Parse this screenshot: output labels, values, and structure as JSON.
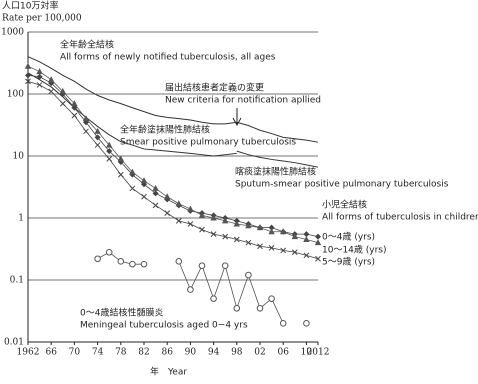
{
  "chart_data": {
    "type": "line",
    "log_y": true,
    "grid": true,
    "y_label": "人口10万対率",
    "y_label_en": "Rate per 100,000",
    "x_label": "年　Year",
    "x": [
      1962,
      1964,
      1966,
      1968,
      1970,
      1972,
      1974,
      1976,
      1978,
      1980,
      1982,
      1984,
      1986,
      1988,
      1990,
      1992,
      1994,
      1996,
      1998,
      2000,
      2002,
      2004,
      2006,
      2008,
      2010,
      2012
    ],
    "xlim": [
      1962,
      2012
    ],
    "xticks": [
      1962,
      {
        "value": 1966,
        "label": "66"
      },
      {
        "value": 1970,
        "label": "70"
      },
      {
        "value": 1974,
        "label": "74"
      },
      {
        "value": 1978,
        "label": "78"
      },
      {
        "value": 1982,
        "label": "82"
      },
      {
        "value": 1986,
        "label": "86"
      },
      {
        "value": 1990,
        "label": "90"
      },
      {
        "value": 1994,
        "label": "94"
      },
      {
        "value": 1998,
        "label": "98"
      },
      {
        "value": 2002,
        "label": "02"
      },
      {
        "value": 2006,
        "label": "06"
      },
      {
        "value": 2010,
        "label": "10"
      },
      2012
    ],
    "ylim": [
      0.01,
      1000
    ],
    "yticks": [
      1000,
      100,
      10,
      1,
      0.1,
      0.01
    ],
    "series": [
      {
        "name": "全年齢全結核",
        "color": "#333",
        "marker": "none",
        "values": [
          400,
          330,
          260,
          200,
          160,
          120,
          95,
          80,
          70,
          60,
          52,
          45,
          42,
          40,
          38,
          35,
          33,
          33,
          35,
          31,
          26,
          23,
          20,
          19,
          18,
          16.7
        ]
      },
      {
        "name": "全年齢塗抹陽性肺結核",
        "color": "#333",
        "marker": "none",
        "values": [
          220,
          170,
          130,
          90,
          60,
          42,
          30,
          22,
          17,
          15,
          13,
          12.5,
          12,
          11.5,
          11,
          10.5,
          10,
          10.5,
          11,
          null,
          null,
          null,
          null,
          null,
          null,
          null
        ]
      },
      {
        "name": "喀痰塗抹陽性肺結核",
        "color": "#333",
        "marker": "none",
        "values": [
          null,
          null,
          null,
          null,
          null,
          null,
          null,
          null,
          null,
          null,
          null,
          null,
          null,
          null,
          null,
          null,
          null,
          null,
          12,
          10.5,
          9.5,
          8.8,
          8.3,
          7.8,
          7.2,
          6.6
        ]
      },
      {
        "name": "0～4歳 (yrs)",
        "color": "#444",
        "marker": "diamond",
        "values": [
          200,
          190,
          150,
          100,
          60,
          35,
          20,
          12,
          8,
          5,
          3.5,
          2.5,
          2,
          1.6,
          1.3,
          1.2,
          1.1,
          1,
          0.9,
          0.8,
          0.7,
          0.7,
          0.6,
          0.55,
          0.55,
          0.5
        ]
      },
      {
        "name": "10～14歳 (yrs)",
        "color": "#555",
        "marker": "triangle",
        "values": [
          280,
          230,
          170,
          110,
          70,
          40,
          25,
          15,
          9,
          5.5,
          4,
          3,
          2.2,
          1.7,
          1.4,
          1.1,
          1,
          0.9,
          0.8,
          0.75,
          0.7,
          0.6,
          0.6,
          0.5,
          0.45,
          0.4
        ]
      },
      {
        "name": "5～9歳 (yrs)",
        "color": "#444",
        "marker": "cross",
        "values": [
          160,
          140,
          110,
          70,
          45,
          25,
          15,
          9,
          5,
          3,
          2.2,
          1.6,
          1.2,
          0.9,
          0.8,
          0.65,
          0.55,
          0.5,
          0.45,
          0.4,
          0.35,
          0.33,
          0.3,
          0.28,
          0.25,
          0.22
        ]
      },
      {
        "name": "0～4歳結核性髄膜炎",
        "color": "#555",
        "marker": "circle",
        "values": [
          null,
          null,
          null,
          null,
          null,
          null,
          0.22,
          0.28,
          0.2,
          0.18,
          0.18,
          null,
          null,
          0.2,
          0.07,
          0.17,
          0.05,
          0.17,
          0.035,
          0.12,
          0.035,
          0.05,
          0.02,
          null,
          0.02,
          null
        ]
      }
    ],
    "annotations": [
      "All forms of newly notified tuberculosis, all ages",
      "届出結核患者定義の変更",
      "New criteria for notification apllied",
      "Smear positive pulmonary tuberculosis",
      "Sputum-smear positive pulmonary tuberculosis",
      "小児全結核",
      "All forms of tuberculosis in children",
      "Meningeal tuberculosis aged 0−4 yrs"
    ]
  }
}
